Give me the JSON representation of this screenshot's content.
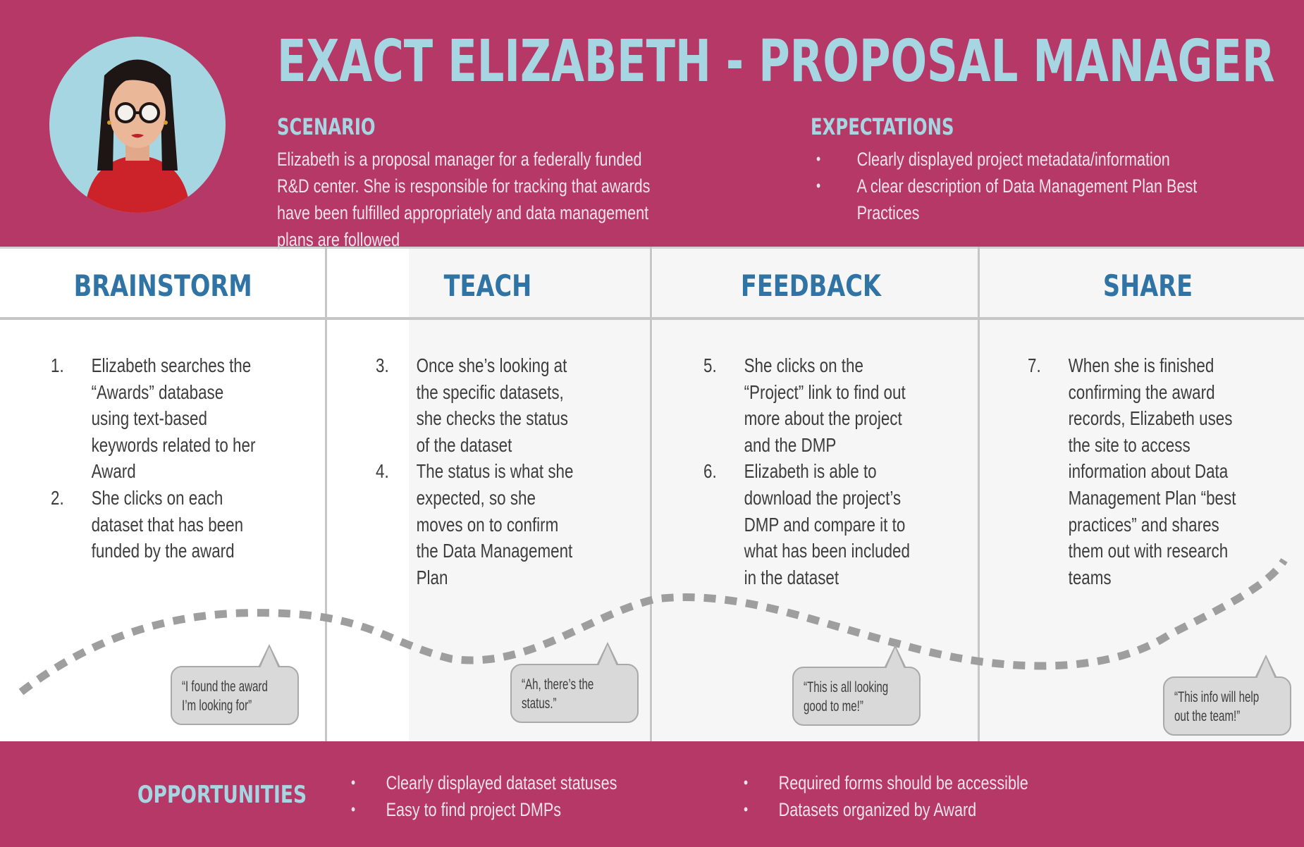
{
  "header": {
    "title": "EXACT ELIZABETH - PROPOSAL MANAGER",
    "scenario": {
      "heading": "SCENARIO",
      "text": "Elizabeth is a proposal manager for a federally funded R&D center. She is responsible for tracking that awards have been fulfilled appropriately and data management plans are followed"
    },
    "expectations": {
      "heading": "EXPECTATIONS",
      "items": [
        "Clearly displayed project metadata/information",
        "A clear description of Data Management Plan Best Practices"
      ]
    }
  },
  "stages": [
    {
      "title": "BRAINSTORM",
      "steps": [
        {
          "num": "1.",
          "text": "Elizabeth searches the “Awards” database using text-based keywords related to her Award"
        },
        {
          "num": "2.",
          "text": "She clicks on each dataset that has been funded by the award"
        }
      ],
      "quote": "“I found the award I’m looking for”"
    },
    {
      "title": "TEACH",
      "steps": [
        {
          "num": "3.",
          "text": "Once she’s looking at the specific datasets, she checks the status of the dataset"
        },
        {
          "num": "4.",
          "text": "The status is what she expected, so she moves on to confirm the Data Management Plan"
        }
      ],
      "quote": "“Ah, there’s the status.”"
    },
    {
      "title": "FEEDBACK",
      "steps": [
        {
          "num": "5.",
          "text": "She clicks on the “Project” link to find out more about the project and the DMP"
        },
        {
          "num": "6.",
          "text": "Elizabeth is able to download the project’s DMP and compare it to what has been included in the dataset"
        }
      ],
      "quote": "“This is all looking good to me!”"
    },
    {
      "title": "SHARE",
      "steps": [
        {
          "num": "7.",
          "text": "When she is finished confirming the award records, Elizabeth uses the site to access information about Data Management Plan “best practices” and shares them out with research teams"
        }
      ],
      "quote": "“This info will help out the team!”"
    }
  ],
  "opportunities": {
    "heading": "OPPORTUNITIES",
    "column1": [
      "Clearly displayed dataset statuses",
      "Easy to find project DMPs"
    ],
    "column2": [
      "Required forms should be accessible",
      "Datasets organized by Award"
    ]
  },
  "colors": {
    "band": "#b53867",
    "heading_light_blue": "#a6d6e2",
    "stage_blue": "#2f74a4",
    "body_text": "#3d3d3d",
    "bubble_fill": "#d9d9d9",
    "wave_dash": "#9e9e9e"
  },
  "icons": {
    "avatar": "woman-with-glasses-avatar-icon"
  }
}
